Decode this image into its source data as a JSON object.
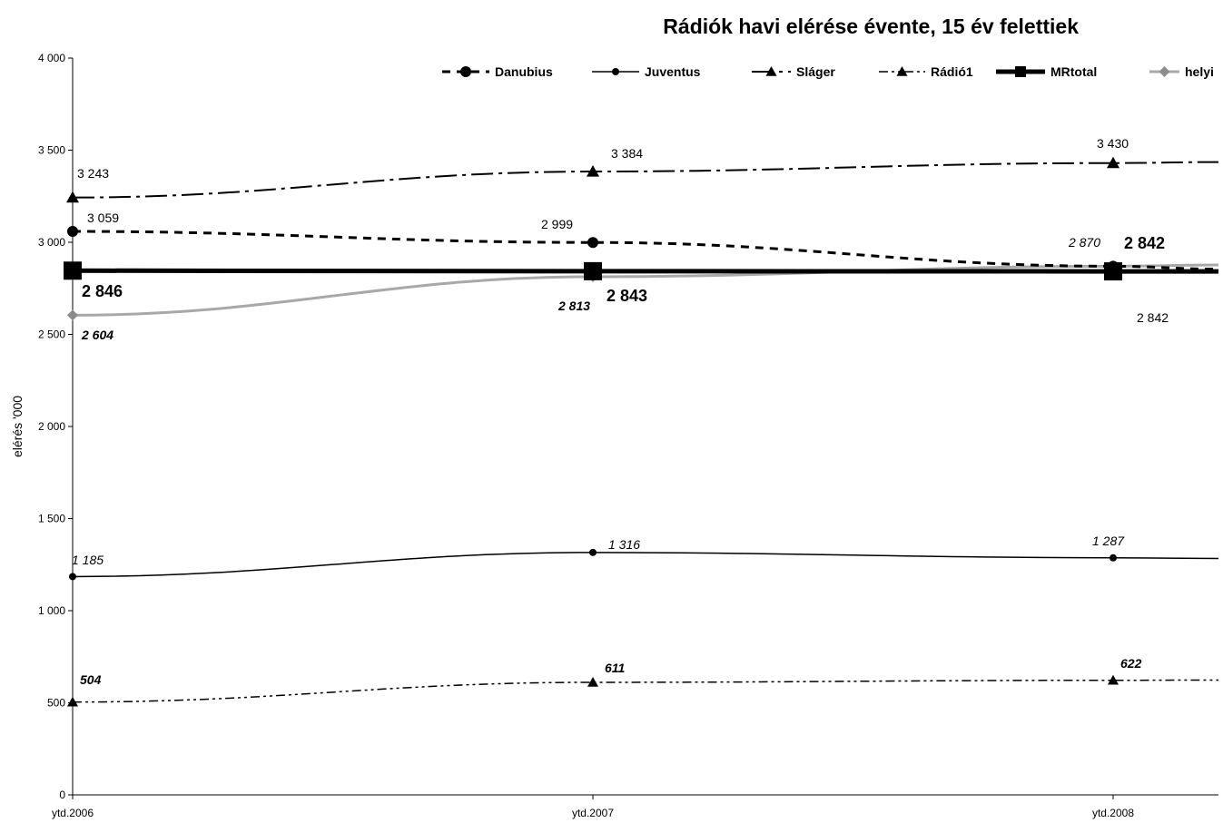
{
  "chart_data": {
    "type": "line",
    "title": "Rádiók havi elérése évente,  15 év felettiek",
    "ylabel": "elérés '000",
    "xlabel": "",
    "categories": [
      "ytd.2006",
      "ytd.2007",
      "ytd.2008"
    ],
    "ylim": [
      0,
      4000
    ],
    "yticks": [
      0,
      500,
      1000,
      1500,
      2000,
      2500,
      3000,
      3500,
      4000
    ],
    "ytick_labels": [
      "0",
      "500",
      "1 000",
      "1 500",
      "2 000",
      "2 500",
      "3 000",
      "3 500",
      "4 000"
    ],
    "legend_position": "top-right",
    "grid": false,
    "series": [
      {
        "name": "Danubius",
        "values": [
          3059,
          2999,
          2870
        ],
        "color": "#000000",
        "labels": [
          "3 059",
          "2 999",
          ""
        ]
      },
      {
        "name": "Juventus",
        "values": [
          1185,
          1316,
          1287
        ],
        "color": "#000000",
        "labels": [
          "1 185",
          "1 316",
          "1 287"
        ]
      },
      {
        "name": "Sláger",
        "values": [
          3243,
          3384,
          3430
        ],
        "color": "#000000",
        "labels": [
          "3 243",
          "3 384",
          "3 430"
        ]
      },
      {
        "name": "Rádió1",
        "values": [
          504,
          611,
          622
        ],
        "color": "#000000",
        "labels": [
          "504",
          "611",
          "622"
        ]
      },
      {
        "name": "MRtotal",
        "values": [
          2846,
          2843,
          2842
        ],
        "color": "#000000",
        "labels": [
          "2 846",
          "2 843",
          "2 842"
        ]
      },
      {
        "name": "helyi",
        "values": [
          2604,
          2813,
          2870
        ],
        "color": "#a8a8a8",
        "labels": [
          "2 604",
          "2 813",
          "2 870"
        ]
      }
    ],
    "extra_annotations": [
      "2 842"
    ]
  }
}
